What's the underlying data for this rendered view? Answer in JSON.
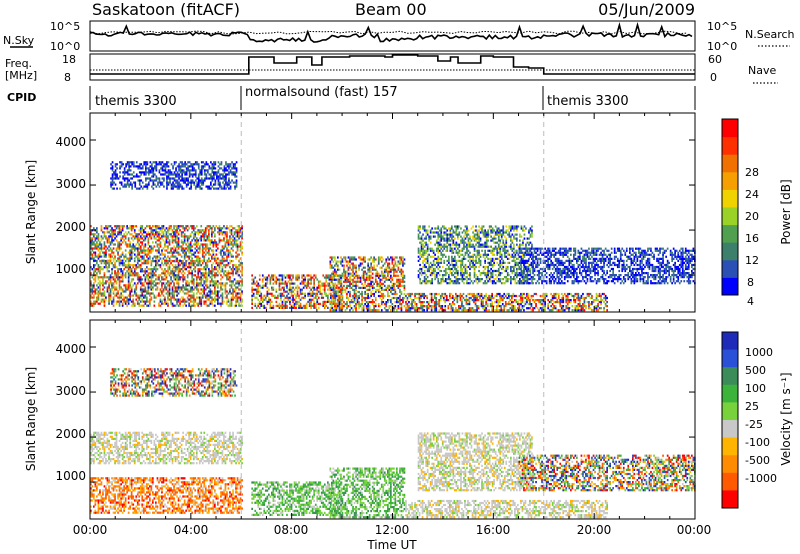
{
  "header": {
    "station": "Saskatoon (fitACF)",
    "beam": "Beam 00",
    "date": "05/Jun/2009"
  },
  "status_panel": {
    "nsky_label": "N.Sky",
    "nsearch_label": "N.Search",
    "noise_ticks": [
      "10^5",
      "10^0"
    ],
    "freq_label": [
      "Freq.",
      "[MHz]"
    ],
    "freq_ticks": [
      "18",
      "8"
    ],
    "nave_label": "Nave",
    "nave_ticks": [
      "60",
      "0"
    ],
    "cpid_label": "CPID",
    "cpid_segments": [
      {
        "label": "themis 3300",
        "start_hour": 0,
        "end_hour": 6
      },
      {
        "label": "normalsound (fast) 157",
        "start_hour": 6,
        "end_hour": 18
      },
      {
        "label": "themis 3300",
        "start_hour": 18,
        "end_hour": 24
      }
    ]
  },
  "chart_data": [
    {
      "type": "heatmap",
      "title": "Power",
      "ylabel": "Slant Range [km]",
      "xlabel": "",
      "xlim": [
        0,
        24
      ],
      "ylim": [
        180,
        4600
      ],
      "y_ticks": [
        "1000",
        "2000",
        "3000",
        "4000"
      ],
      "colorbar": {
        "label": "Power [dB]",
        "ticks": [
          "4",
          "8",
          "12",
          "16",
          "20",
          "24",
          "28"
        ],
        "colors": [
          "#0000ff",
          "#2a4fb5",
          "#3c7f6a",
          "#50a050",
          "#9ad228",
          "#f0d200",
          "#f5a000",
          "#f07000",
          "#ff3000",
          "#ff0000"
        ]
      },
      "echo_regions": [
        {
          "start_hour": 0.0,
          "end_hour": 6.0,
          "min_range": 300,
          "max_range": 1300,
          "level": "strong"
        },
        {
          "start_hour": 0.0,
          "end_hour": 6.0,
          "min_range": 1300,
          "max_range": 2100,
          "level": "strong"
        },
        {
          "start_hour": 0.8,
          "end_hour": 5.8,
          "min_range": 2900,
          "max_range": 3500,
          "level": "weak"
        },
        {
          "start_hour": 6.4,
          "end_hour": 10.0,
          "min_range": 250,
          "max_range": 1000,
          "level": "mixed"
        },
        {
          "start_hour": 9.5,
          "end_hour": 12.5,
          "min_range": 200,
          "max_range": 1400,
          "level": "mixed"
        },
        {
          "start_hour": 12.5,
          "end_hour": 20.5,
          "min_range": 200,
          "max_range": 600,
          "level": "mixed"
        },
        {
          "start_hour": 13.0,
          "end_hour": 17.5,
          "min_range": 800,
          "max_range": 2100,
          "level": "medium"
        },
        {
          "start_hour": 17.0,
          "end_hour": 24.0,
          "min_range": 800,
          "max_range": 1600,
          "level": "weak"
        }
      ]
    },
    {
      "type": "heatmap",
      "title": "Velocity",
      "ylabel": "Slant Range [km]",
      "xlabel": "Time UT",
      "xlim": [
        0,
        24
      ],
      "ylim": [
        180,
        4600
      ],
      "x_ticks": [
        "00:00",
        "04:00",
        "08:00",
        "12:00",
        "16:00",
        "20:00",
        "00:00"
      ],
      "y_ticks": [
        "1000",
        "2000",
        "3000",
        "4000"
      ],
      "colorbar": {
        "label": "Velocity [m s⁻¹]",
        "ticks": [
          "1000",
          "500",
          "100",
          "25",
          "-25",
          "-100",
          "-500",
          "-1000"
        ],
        "colors": [
          "#1e2ab8",
          "#2a50d8",
          "#3c8c5a",
          "#3cb43c",
          "#78d23c",
          "#c8c8c8",
          "#ffb400",
          "#ff8c00",
          "#ff5a00",
          "#ff0000"
        ]
      },
      "echo_regions": [
        {
          "start_hour": 0.0,
          "end_hour": 6.0,
          "min_range": 300,
          "max_range": 1100,
          "level": "orange"
        },
        {
          "start_hour": 0.0,
          "end_hour": 6.0,
          "min_range": 1400,
          "max_range": 2100,
          "level": "gray"
        },
        {
          "start_hour": 0.8,
          "end_hour": 5.8,
          "min_range": 2900,
          "max_range": 3500,
          "level": "mixed"
        },
        {
          "start_hour": 6.4,
          "end_hour": 10.0,
          "min_range": 250,
          "max_range": 1000,
          "level": "green"
        },
        {
          "start_hour": 9.5,
          "end_hour": 12.5,
          "min_range": 200,
          "max_range": 1300,
          "level": "green"
        },
        {
          "start_hour": 12.5,
          "end_hour": 20.5,
          "min_range": 200,
          "max_range": 600,
          "level": "gray"
        },
        {
          "start_hour": 13.0,
          "end_hour": 17.5,
          "min_range": 800,
          "max_range": 2100,
          "level": "gray"
        },
        {
          "start_hour": 17.0,
          "end_hour": 24.0,
          "min_range": 800,
          "max_range": 1600,
          "level": "mixed"
        }
      ]
    }
  ]
}
